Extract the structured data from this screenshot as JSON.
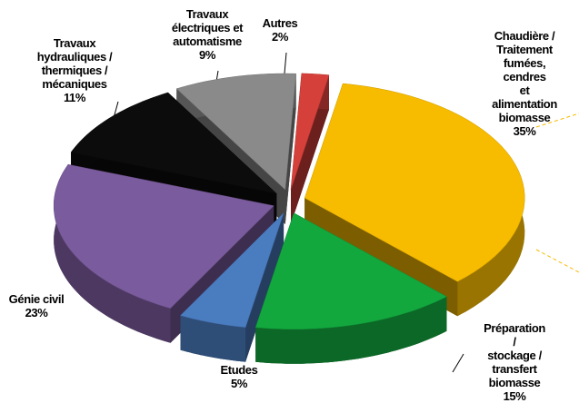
{
  "chart_data": {
    "type": "pie3d",
    "categories": [
      "Chaudière /\nTraitement\nfumées, cendres\net alimentation\nbiomasse",
      "Préparation /\nstockage /\ntransfert biomasse",
      "Etudes",
      "Génie civil",
      "Travaux\nhydrauliques /\nthermiques /\nmécaniques",
      "Travaux\nélectriques et\nautomatisme",
      "Autres"
    ],
    "values": [
      35,
      15,
      5,
      23,
      11,
      9,
      2
    ],
    "value_labels": [
      "35%",
      "15%",
      "5%",
      "23%",
      "11%",
      "9%",
      "2%"
    ],
    "colors": [
      "#f7bb00",
      "#12a83e",
      "#4a7cc0",
      "#7a5b9d",
      "#0c0c0c",
      "#8a8a8a",
      "#d6403b"
    ]
  }
}
